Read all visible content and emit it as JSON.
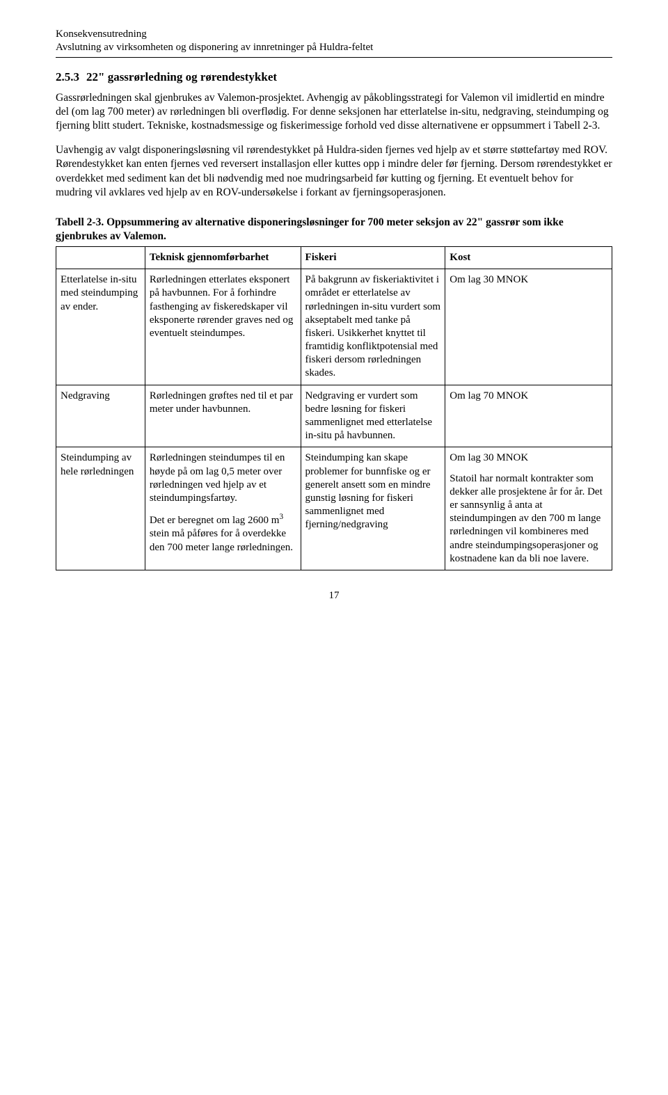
{
  "header": {
    "line1": "Konsekvensutredning",
    "line2": "Avslutning av virksomheten og disponering av innretninger på Huldra-feltet"
  },
  "section": {
    "number": "2.5.3",
    "title": "22\" gassrørledning og rørendestykket"
  },
  "paragraphs": {
    "p1": "Gassrørledningen skal gjenbrukes av Valemon-prosjektet. Avhengig av påkoblingsstrategi for Valemon vil imidlertid en mindre del (om lag 700 meter) av rørledningen bli overflødig. For denne seksjonen har etterlatelse in-situ, nedgraving, steindumping og fjerning blitt studert. Tekniske, kostnadsmessige og fiskerimessige forhold ved disse alternativene er oppsummert i Tabell 2-3.",
    "p2": "Uavhengig av valgt disponeringsløsning vil rørendestykket på Huldra-siden fjernes ved hjelp av et større støttefartøy med ROV. Rørendestykket kan enten fjernes ved reversert installasjon eller kuttes opp i mindre deler før fjerning. Dersom rørendestykket er overdekket med sediment kan det bli nødvendig med noe mudringsarbeid før kutting og fjerning. Et eventuelt behov for mudring vil avklares ved hjelp av en ROV-undersøkelse i forkant av fjerningsoperasjonen."
  },
  "table": {
    "caption": "Tabell 2-3. Oppsummering av alternative disponeringsløsninger for 700 meter seksjon av 22\" gassrør som ikke gjenbrukes av Valemon.",
    "columns": [
      "",
      "Teknisk gjennomførbarhet",
      "Fiskeri",
      "Kost"
    ],
    "rows": [
      {
        "label": "Etterlatelse in-situ med steindumping av ender.",
        "teknisk": "Rørledningen etterlates eksponert på havbunnen. For å forhindre fasthenging av fiskeredskaper vil eksponerte rørender graves ned og eventuelt steindumpes.",
        "fiskeri": "På bakgrunn av fiskeriaktivitet i området er etterlatelse av rørledningen in-situ vurdert som akseptabelt med tanke på fiskeri. Usikkerhet knyttet til framtidig konfliktpotensial med fiskeri dersom rørledningen skades.",
        "kost": "Om lag 30 MNOK"
      },
      {
        "label": "Nedgraving",
        "teknisk": "Rørledningen grøftes ned til et par meter under havbunnen.",
        "fiskeri": "Nedgraving er vurdert som bedre løsning for fiskeri sammenlignet med etterlatelse in-situ på havbunnen.",
        "kost": "Om lag 70 MNOK"
      },
      {
        "label": "Steindumping av hele rørledningen",
        "teknisk_p1": "Rørledningen steindumpes til en høyde på om lag 0,5 meter over rørledningen ved hjelp av et steindumpingsfartøy.",
        "teknisk_p2_a": "Det er beregnet om lag 2600 m",
        "teknisk_p2_sup": "3",
        "teknisk_p2_b": " stein må påføres for å overdekke den 700 meter lange rørledningen.",
        "fiskeri": "Steindumping kan skape problemer for bunnfiske og er generelt ansett som en mindre gunstig løsning for fiskeri sammenlignet med fjerning/nedgraving",
        "kost_p1": "Om lag 30 MNOK",
        "kost_p2": "Statoil har normalt kontrakter som dekker alle prosjektene år for år. Det er sannsynlig å anta at steindumpingen av den 700 m lange rørledningen vil kombineres med andre steindumpingsoperasjoner og kostnadene kan da bli noe lavere."
      }
    ]
  },
  "pageNumber": "17"
}
